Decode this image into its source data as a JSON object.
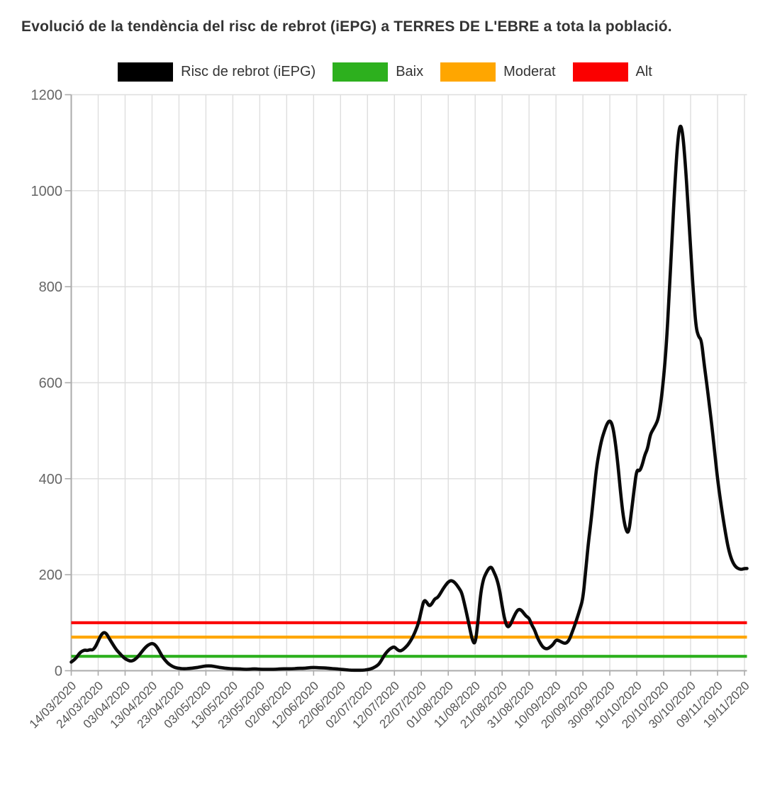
{
  "title": "Evolució de la tendència del risc de rebrot (iEPG) a TERRES DE L'EBRE a tota la població.",
  "legend": [
    {
      "label": "Risc de rebrot (iEPG)",
      "color": "#000000"
    },
    {
      "label": "Baix",
      "color": "#2db01e"
    },
    {
      "label": "Moderat",
      "color": "#ffa600"
    },
    {
      "label": "Alt",
      "color": "#fb0000"
    }
  ],
  "chart_data": {
    "type": "line",
    "title": "Evolució de la tendència del risc de rebrot (iEPG) a TERRES DE L'EBRE a tota la població.",
    "xlabel": "",
    "ylabel": "",
    "x_start_date": "14/03/2020",
    "x_end_date": "19/11/2020",
    "x_tick_interval_days": 10,
    "x_tick_labels": [
      "14/03/2020",
      "24/03/2020",
      "03/04/2020",
      "13/04/2020",
      "23/04/2020",
      "03/05/2020",
      "13/05/2020",
      "23/05/2020",
      "02/06/2020",
      "12/06/2020",
      "22/06/2020",
      "02/07/2020",
      "12/07/2020",
      "22/07/2020",
      "01/08/2020",
      "11/08/2020",
      "21/08/2020",
      "31/08/2020",
      "10/09/2020",
      "20/09/2020",
      "30/09/2020",
      "10/10/2020",
      "20/10/2020",
      "30/10/2020",
      "09/11/2020",
      "19/11/2020"
    ],
    "y_ticks": [
      0,
      200,
      400,
      600,
      800,
      1000,
      1200
    ],
    "ylim": [
      0,
      1200
    ],
    "grid": true,
    "legend_position": "top",
    "thresholds": [
      {
        "name": "Baix",
        "value": 30,
        "color": "#2db01e"
      },
      {
        "name": "Moderat",
        "value": 70,
        "color": "#ffa600"
      },
      {
        "name": "Alt",
        "value": 100,
        "color": "#fb0000"
      }
    ],
    "series": [
      {
        "name": "Risc de rebrot (iEPG)",
        "color": "#0a0a0a",
        "x_unit": "days_since_14/03/2020",
        "points": [
          [
            0,
            18
          ],
          [
            1,
            22
          ],
          [
            2,
            28
          ],
          [
            3,
            36
          ],
          [
            4,
            41
          ],
          [
            5,
            43
          ],
          [
            6,
            42
          ],
          [
            7,
            44
          ],
          [
            8,
            43
          ],
          [
            9,
            50
          ],
          [
            10,
            62
          ],
          [
            11,
            74
          ],
          [
            12,
            80
          ],
          [
            13,
            78
          ],
          [
            14,
            68
          ],
          [
            15,
            59
          ],
          [
            16,
            50
          ],
          [
            17,
            42
          ],
          [
            18,
            36
          ],
          [
            19,
            30
          ],
          [
            20,
            25
          ],
          [
            21,
            22
          ],
          [
            22,
            20
          ],
          [
            23,
            21
          ],
          [
            24,
            25
          ],
          [
            25,
            31
          ],
          [
            26,
            38
          ],
          [
            27,
            45
          ],
          [
            28,
            51
          ],
          [
            29,
            55
          ],
          [
            30,
            57
          ],
          [
            31,
            55
          ],
          [
            32,
            48
          ],
          [
            33,
            38
          ],
          [
            34,
            28
          ],
          [
            35,
            21
          ],
          [
            36,
            15
          ],
          [
            37,
            11
          ],
          [
            38,
            8
          ],
          [
            39,
            6
          ],
          [
            40,
            5
          ],
          [
            42,
            4
          ],
          [
            44,
            5
          ],
          [
            46,
            6
          ],
          [
            48,
            8
          ],
          [
            50,
            10
          ],
          [
            52,
            10
          ],
          [
            54,
            8
          ],
          [
            56,
            6
          ],
          [
            58,
            5
          ],
          [
            60,
            4
          ],
          [
            62,
            4
          ],
          [
            64,
            3
          ],
          [
            66,
            3
          ],
          [
            68,
            4
          ],
          [
            70,
            3
          ],
          [
            72,
            3
          ],
          [
            74,
            3
          ],
          [
            76,
            3
          ],
          [
            78,
            4
          ],
          [
            80,
            4
          ],
          [
            82,
            4
          ],
          [
            84,
            5
          ],
          [
            86,
            5
          ],
          [
            88,
            6
          ],
          [
            90,
            7
          ],
          [
            92,
            6
          ],
          [
            94,
            6
          ],
          [
            96,
            5
          ],
          [
            98,
            4
          ],
          [
            100,
            3
          ],
          [
            102,
            2
          ],
          [
            104,
            1
          ],
          [
            106,
            1
          ],
          [
            108,
            1
          ],
          [
            110,
            2
          ],
          [
            112,
            5
          ],
          [
            114,
            12
          ],
          [
            115,
            20
          ],
          [
            116,
            30
          ],
          [
            117,
            38
          ],
          [
            118,
            44
          ],
          [
            119,
            48
          ],
          [
            120,
            50
          ],
          [
            121,
            44
          ],
          [
            122,
            41
          ],
          [
            123,
            43
          ],
          [
            124,
            48
          ],
          [
            125,
            54
          ],
          [
            126,
            62
          ],
          [
            127,
            72
          ],
          [
            128,
            85
          ],
          [
            129,
            100
          ],
          [
            130,
            125
          ],
          [
            131,
            148
          ],
          [
            132,
            143
          ],
          [
            133,
            134
          ],
          [
            134,
            140
          ],
          [
            135,
            150
          ],
          [
            136,
            152
          ],
          [
            137,
            160
          ],
          [
            138,
            170
          ],
          [
            139,
            178
          ],
          [
            140,
            185
          ],
          [
            141,
            188
          ],
          [
            142,
            186
          ],
          [
            143,
            180
          ],
          [
            144,
            172
          ],
          [
            145,
            163
          ],
          [
            146,
            140
          ],
          [
            147,
            115
          ],
          [
            148,
            88
          ],
          [
            149,
            62
          ],
          [
            150,
            55
          ],
          [
            151,
            100
          ],
          [
            152,
            160
          ],
          [
            153,
            190
          ],
          [
            154,
            203
          ],
          [
            155,
            213
          ],
          [
            156,
            217
          ],
          [
            157,
            205
          ],
          [
            158,
            192
          ],
          [
            159,
            170
          ],
          [
            160,
            135
          ],
          [
            161,
            105
          ],
          [
            162,
            90
          ],
          [
            163,
            95
          ],
          [
            164,
            108
          ],
          [
            165,
            120
          ],
          [
            166,
            128
          ],
          [
            167,
            127
          ],
          [
            168,
            120
          ],
          [
            169,
            113
          ],
          [
            170,
            110
          ],
          [
            171,
            95
          ],
          [
            172,
            86
          ],
          [
            173,
            70
          ],
          [
            174,
            59
          ],
          [
            175,
            50
          ],
          [
            176,
            46
          ],
          [
            177,
            46
          ],
          [
            178,
            50
          ],
          [
            179,
            55
          ],
          [
            180,
            64
          ],
          [
            181,
            63
          ],
          [
            182,
            60
          ],
          [
            183,
            57
          ],
          [
            184,
            58
          ],
          [
            185,
            65
          ],
          [
            186,
            80
          ],
          [
            187,
            95
          ],
          [
            188,
            112
          ],
          [
            189,
            130
          ],
          [
            190,
            150
          ],
          [
            191,
            205
          ],
          [
            192,
            265
          ],
          [
            193,
            310
          ],
          [
            194,
            365
          ],
          [
            195,
            421
          ],
          [
            196,
            455
          ],
          [
            197,
            482
          ],
          [
            198,
            500
          ],
          [
            199,
            515
          ],
          [
            200,
            522
          ],
          [
            201,
            512
          ],
          [
            202,
            478
          ],
          [
            203,
            430
          ],
          [
            204,
            370
          ],
          [
            205,
            320
          ],
          [
            206,
            292
          ],
          [
            207,
            286
          ],
          [
            208,
            330
          ],
          [
            209,
            377
          ],
          [
            210,
            420
          ],
          [
            211,
            415
          ],
          [
            212,
            428
          ],
          [
            213,
            450
          ],
          [
            214,
            462
          ],
          [
            215,
            492
          ],
          [
            216,
            502
          ],
          [
            217,
            512
          ],
          [
            218,
            525
          ],
          [
            219,
            560
          ],
          [
            220,
            612
          ],
          [
            221,
            680
          ],
          [
            222,
            780
          ],
          [
            223,
            890
          ],
          [
            224,
            1000
          ],
          [
            225,
            1090
          ],
          [
            226,
            1140
          ],
          [
            227,
            1125
          ],
          [
            228,
            1060
          ],
          [
            229,
            975
          ],
          [
            230,
            880
          ],
          [
            231,
            790
          ],
          [
            232,
            715
          ],
          [
            233,
            695
          ],
          [
            234,
            690
          ],
          [
            235,
            640
          ],
          [
            236,
            598
          ],
          [
            237,
            552
          ],
          [
            238,
            505
          ],
          [
            239,
            452
          ],
          [
            240,
            400
          ],
          [
            241,
            358
          ],
          [
            242,
            320
          ],
          [
            243,
            285
          ],
          [
            244,
            255
          ],
          [
            245,
            235
          ],
          [
            246,
            222
          ],
          [
            247,
            215
          ],
          [
            248,
            212
          ],
          [
            249,
            211
          ],
          [
            250,
            213
          ]
        ]
      }
    ]
  },
  "colors": {
    "grid": "#dedede",
    "axis": "#ababab",
    "tick_text": "#666666",
    "title_text": "#333333"
  }
}
